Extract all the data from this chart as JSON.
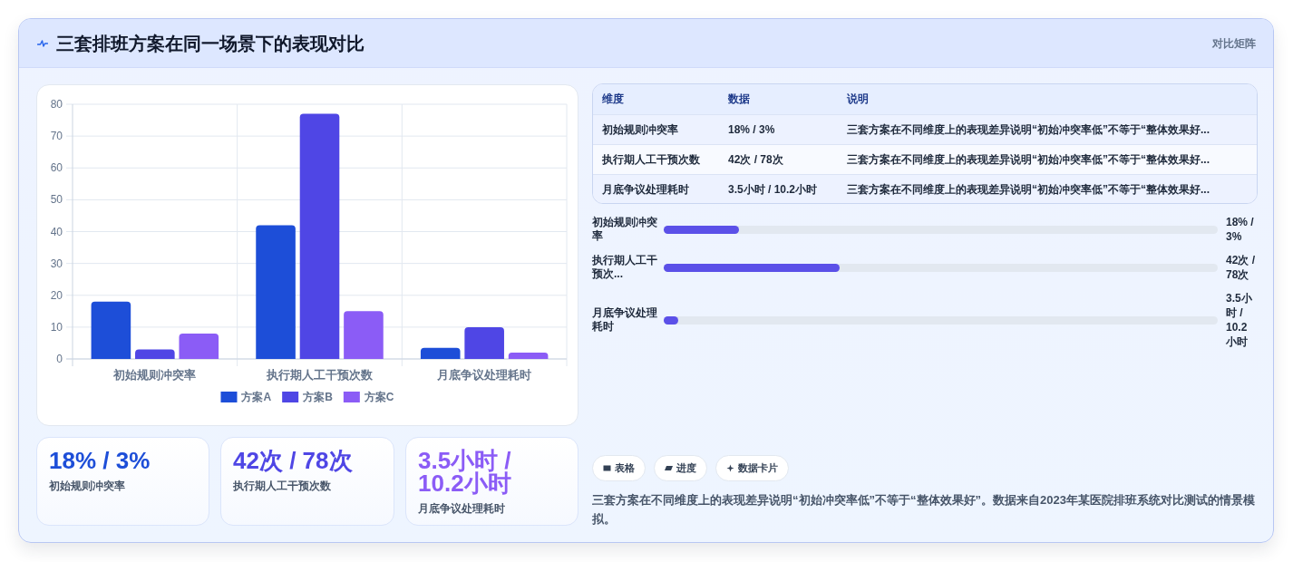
{
  "chart_data": [
    {
      "type": "other",
      "title": "三套排班方案在同一场景下的表现对比",
      "subtitle": "对比矩阵"
    },
    {
      "type": "bar",
      "categories": [
        "初始规则冲突率",
        "执行期人工干预次数",
        "月底争议处理耗时"
      ],
      "series": [
        {
          "name": "方案A",
          "color": "#1d4ed8",
          "values": [
            18,
            42,
            3.5
          ]
        },
        {
          "name": "方案B",
          "color": "#4f46e5",
          "values": [
            3,
            77,
            10
          ]
        },
        {
          "name": "方案C",
          "color": "#8b5cf6",
          "values": [
            8,
            15,
            2
          ]
        }
      ],
      "ylim": [
        0,
        80
      ],
      "yticks": [
        0,
        10,
        20,
        30,
        40,
        50,
        60,
        70,
        80
      ],
      "grid": true,
      "legend": "bottom"
    },
    {
      "type": "other",
      "categories": [
        "维度",
        "数据",
        "说明"
      ],
      "cell_labels": [
        [
          "初始规则冲突率",
          "18% / 3%",
          "三套方案在不同维度上的表现差异说明“初始冲突率低”不等于“整体效果好..."
        ],
        [
          "执行期人工干预次数",
          "42次 / 78次",
          "三套方案在不同维度上的表现差异说明“初始冲突率低”不等于“整体效果好..."
        ],
        [
          "月底争议处理耗时",
          "3.5小时 / 10.2小时",
          "三套方案在不同维度上的表现差异说明“初始冲突率低”不等于“整体效果好..."
        ]
      ]
    },
    {
      "type": "bar",
      "orientation": "horizontal",
      "categories": [
        "初始规则冲突率",
        "执行期人工干预次...",
        "月底争议处理耗时"
      ],
      "values": [
        18,
        42,
        3.5
      ],
      "value_labels": [
        "18% / 3%",
        "42次 / 78次",
        "3.5小时 / 10.2小时"
      ],
      "color": "#5b50e8"
    },
    {
      "type": "other",
      "title": "18% / 3%",
      "subtitle": "初始规则冲突率",
      "color": "#1d4ed8"
    },
    {
      "type": "other",
      "title": "42次 / 78次",
      "subtitle": "执行期人工干预次数",
      "color": "#4f46e5"
    },
    {
      "type": "other",
      "title": "3.5小时 / 10.2小时",
      "subtitle": "月底争议处理耗时",
      "color": "#8b5cf6"
    },
    {
      "type": "other",
      "categories": [
        "表格",
        "进度",
        "数据卡片"
      ],
      "annotations": [
        "三套方案在不同维度上的表现差异说明“初始冲突率低”不等于“整体效果好”。数据来自2023年某医院排班系统对比测试的情景模拟。"
      ]
    }
  ]
}
